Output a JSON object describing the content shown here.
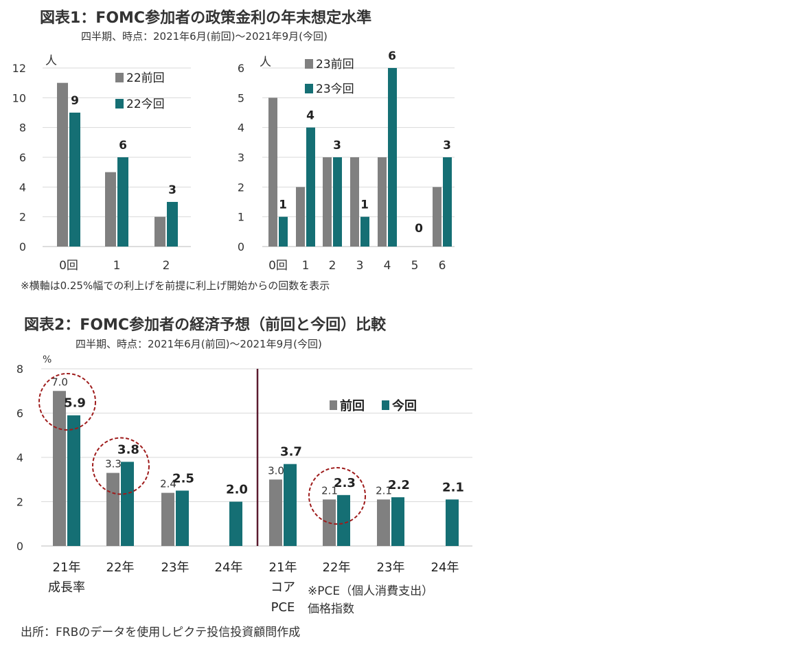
{
  "colors": {
    "prev": "#808080",
    "curr": "#156f74",
    "grid": "#d9d9d9",
    "circle": "#9e1b1b",
    "divider": "#5a1a2e"
  },
  "fig1": {
    "title": "図表1：FOMC参加者の政策金利の年末想定水準",
    "subtitle": "四半期、時点：2021年6月(前回)～2021年9月(今回)",
    "note": "※横軸は0.25%幅での利上げを前提に利上げ開始からの回数を表示"
  },
  "fig2": {
    "title": "図表2：FOMC参加者の経済予想（前回と今回）比較",
    "subtitle": "四半期、時点：2021年6月(前回)～2021年9月(今回)",
    "pce_note_line1": "※PCE（個人消費支出）",
    "pce_note_line2": "価格指数"
  },
  "source": "出所：FRBのデータを使用しピクテ投信投資顧問作成",
  "chart_data": [
    {
      "type": "bar",
      "unit": "人",
      "categories": [
        "0回",
        "1",
        "2"
      ],
      "ylim": [
        0,
        12
      ],
      "yticks": [
        "0",
        "2",
        "4",
        "6",
        "8",
        "10",
        "12"
      ],
      "series": [
        {
          "name": "22前回",
          "values": [
            11,
            5,
            2
          ]
        },
        {
          "name": "22今回",
          "values": [
            9,
            6,
            3
          ]
        }
      ],
      "data_labels": [
        "9",
        "6",
        "3"
      ],
      "legend": "top-right",
      "grid": true
    },
    {
      "type": "bar",
      "unit": "人",
      "categories": [
        "0回",
        "1",
        "2",
        "3",
        "4",
        "5",
        "6"
      ],
      "ylim": [
        0,
        6
      ],
      "yticks": [
        "0",
        "1",
        "2",
        "3",
        "4",
        "5",
        "6"
      ],
      "series": [
        {
          "name": "23前回",
          "values": [
            5,
            2,
            3,
            3,
            3,
            0,
            2
          ]
        },
        {
          "name": "23今回",
          "values": [
            1,
            4,
            3,
            1,
            6,
            0,
            3
          ]
        }
      ],
      "data_labels": [
        "1",
        "4",
        "3",
        "1",
        "6",
        "0",
        "3"
      ],
      "legend": "top-left",
      "grid": true
    },
    {
      "type": "bar",
      "unit": "%",
      "categories": [
        {
          "line1": "21年",
          "line2": "成長率",
          "line3": ""
        },
        {
          "line1": "22年",
          "line2": "",
          "line3": ""
        },
        {
          "line1": "23年",
          "line2": "",
          "line3": ""
        },
        {
          "line1": "24年",
          "line2": "",
          "line3": ""
        },
        {
          "line1": "21年",
          "line2": "コア",
          "line3": "PCE"
        },
        {
          "line1": "22年",
          "line2": "",
          "line3": ""
        },
        {
          "line1": "23年",
          "line2": "",
          "line3": ""
        },
        {
          "line1": "24年",
          "line2": "",
          "line3": ""
        }
      ],
      "ylim": [
        0,
        8
      ],
      "yticks": [
        "0",
        "2",
        "4",
        "6",
        "8"
      ],
      "series": [
        {
          "name": "前回",
          "values": [
            7.0,
            3.3,
            2.4,
            null,
            3.0,
            2.1,
            2.1,
            null
          ]
        },
        {
          "name": "今回",
          "values": [
            5.9,
            3.8,
            2.5,
            2.0,
            3.7,
            2.3,
            2.2,
            2.1
          ]
        }
      ],
      "prev_labels": [
        "7.0",
        "3.3",
        "2.4",
        "",
        "3.0",
        "2.1",
        "2.1",
        ""
      ],
      "curr_labels": [
        "5.9",
        "3.8",
        "2.5",
        "2.0",
        "3.7",
        "2.3",
        "2.2",
        "2.1"
      ],
      "highlighted_categories": [
        0,
        1,
        5
      ],
      "legend": "top-right",
      "grid": true
    }
  ]
}
